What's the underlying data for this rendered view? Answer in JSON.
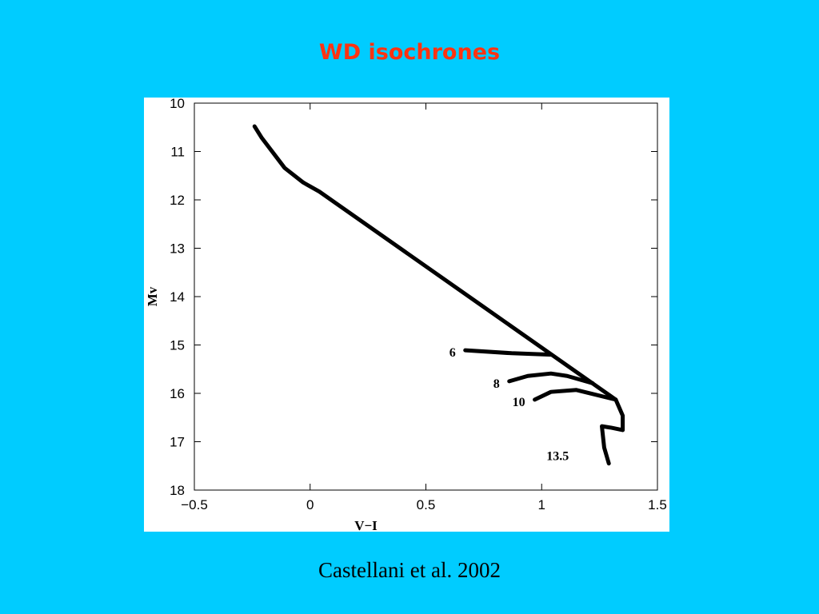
{
  "slide": {
    "title": "WD isochrones",
    "caption": "Castellani et al. 2002"
  },
  "chart_data": {
    "type": "line",
    "x_label": "V−I",
    "y_label": "Mv",
    "xlim": [
      -0.5,
      1.5
    ],
    "ylim": [
      18,
      10
    ],
    "xticks": [
      {
        "value": -0.5,
        "label": "−0.5"
      },
      0,
      0.5,
      1,
      1.5
    ],
    "yticks": [
      10,
      11,
      12,
      13,
      14,
      15,
      16,
      17,
      18
    ],
    "color": "#000000",
    "series": [
      {
        "name": "6",
        "x": [
          0.67,
          0.87,
          1.04
        ],
        "values": [
          15.11,
          15.17,
          15.2
        ]
      },
      {
        "name": "8",
        "x": [
          0.86,
          0.94,
          1.04,
          1.11,
          1.22
        ],
        "values": [
          15.75,
          15.64,
          15.59,
          15.64,
          15.79
        ]
      },
      {
        "name": "10",
        "x": [
          0.97,
          1.04,
          1.15,
          1.32
        ],
        "values": [
          16.13,
          15.97,
          15.93,
          16.13
        ]
      },
      {
        "name": "13.5",
        "x": [
          -0.24,
          -0.21,
          -0.11,
          -0.03,
          0.04,
          1.32,
          1.35,
          1.35,
          1.3,
          1.26,
          1.27,
          1.29
        ],
        "values": [
          10.48,
          10.71,
          11.34,
          11.64,
          11.83,
          16.13,
          16.46,
          16.76,
          16.71,
          16.68,
          17.12,
          17.45
        ]
      }
    ]
  }
}
